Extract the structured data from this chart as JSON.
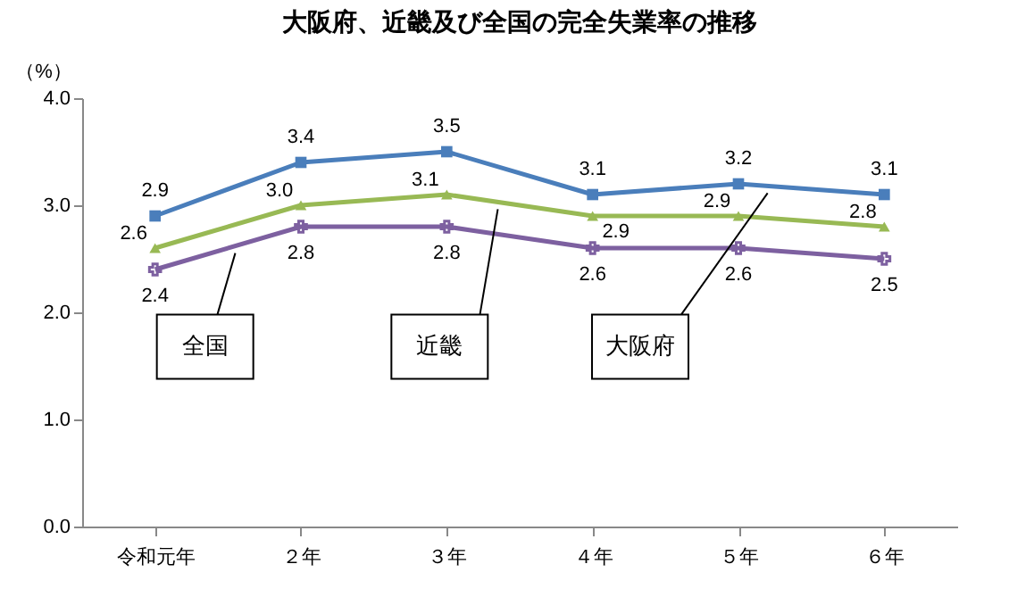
{
  "chart_data": {
    "type": "line",
    "title": "大阪府、近畿及び全国の完全失業率の推移",
    "ylabel": "（%）",
    "categories": [
      "令和元年",
      "２年",
      "３年",
      "４年",
      "５年",
      "６年"
    ],
    "series": [
      {
        "name": "大阪府",
        "color": "#4a7ebb",
        "marker": "square",
        "values": [
          2.9,
          3.4,
          3.5,
          3.1,
          3.2,
          3.1
        ],
        "value_labels": [
          "2.9",
          "3.4",
          "3.5",
          "3.1",
          "3.2",
          "3.1"
        ]
      },
      {
        "name": "近畿",
        "color": "#98b954",
        "marker": "triangle",
        "values": [
          2.6,
          3.0,
          3.1,
          2.9,
          2.9,
          2.8
        ],
        "value_labels": [
          "2.6",
          "3.0",
          "3.1",
          "2.9",
          "2.9",
          "2.8"
        ]
      },
      {
        "name": "全国",
        "color": "#7d60a0",
        "marker": "cross",
        "values": [
          2.4,
          2.8,
          2.8,
          2.6,
          2.6,
          2.5
        ],
        "value_labels": [
          "2.4",
          "2.8",
          "2.8",
          "2.6",
          "2.6",
          "2.5"
        ]
      }
    ],
    "ylim": [
      0,
      4
    ],
    "yticks": [
      {
        "value": 0,
        "label": "0.0"
      },
      {
        "value": 1,
        "label": "1.0"
      },
      {
        "value": 2,
        "label": "2.0"
      },
      {
        "value": 3,
        "label": "3.0"
      },
      {
        "value": 4,
        "label": "4.0"
      }
    ],
    "grid": false,
    "legend": false
  }
}
